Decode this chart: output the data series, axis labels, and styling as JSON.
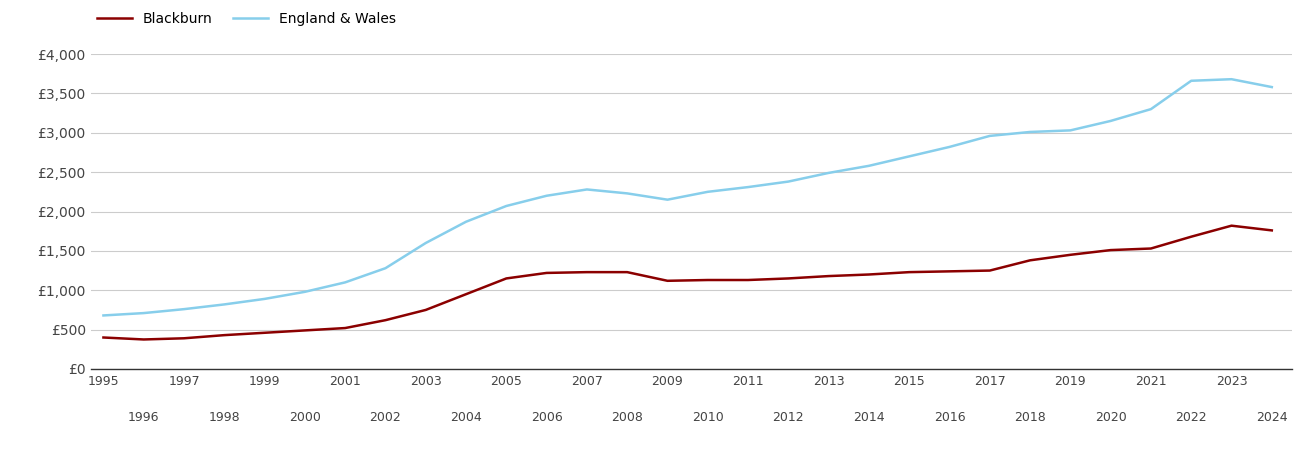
{
  "blackburn_years": [
    1995,
    1996,
    1997,
    1998,
    1999,
    2000,
    2001,
    2002,
    2003,
    2004,
    2005,
    2006,
    2007,
    2008,
    2009,
    2010,
    2011,
    2012,
    2013,
    2014,
    2015,
    2016,
    2017,
    2018,
    2019,
    2020,
    2021,
    2022,
    2023,
    2024
  ],
  "blackburn_values": [
    400,
    375,
    390,
    430,
    460,
    490,
    520,
    620,
    750,
    950,
    1150,
    1220,
    1230,
    1230,
    1120,
    1130,
    1130,
    1150,
    1180,
    1200,
    1230,
    1240,
    1250,
    1380,
    1450,
    1510,
    1530,
    1680,
    1820,
    1760
  ],
  "ew_years": [
    1995,
    1996,
    1997,
    1998,
    1999,
    2000,
    2001,
    2002,
    2003,
    2004,
    2005,
    2006,
    2007,
    2008,
    2009,
    2010,
    2011,
    2012,
    2013,
    2014,
    2015,
    2016,
    2017,
    2018,
    2019,
    2020,
    2021,
    2022,
    2023,
    2024
  ],
  "ew_values": [
    680,
    710,
    760,
    820,
    890,
    980,
    1100,
    1280,
    1600,
    1870,
    2070,
    2200,
    2280,
    2230,
    2150,
    2250,
    2310,
    2380,
    2490,
    2580,
    2700,
    2820,
    2960,
    3010,
    3030,
    3150,
    3300,
    3660,
    3680,
    3580
  ],
  "blackburn_color": "#8B0000",
  "ew_color": "#87CEEB",
  "ylim": [
    0,
    4000
  ],
  "yticks": [
    0,
    500,
    1000,
    1500,
    2000,
    2500,
    3000,
    3500,
    4000
  ],
  "ytick_labels": [
    "£0",
    "£500",
    "£1,000",
    "£1,500",
    "£2,000",
    "£2,500",
    "£3,000",
    "£3,500",
    "£4,000"
  ],
  "xlim_min": 1994.7,
  "xlim_max": 2024.5,
  "background_color": "#ffffff",
  "grid_color": "#cccccc",
  "legend_blackburn": "Blackburn",
  "legend_ew": "England & Wales",
  "line_width": 1.8,
  "odd_years": [
    1995,
    1997,
    1999,
    2001,
    2003,
    2005,
    2007,
    2009,
    2011,
    2013,
    2015,
    2017,
    2019,
    2021,
    2023
  ],
  "even_years": [
    1996,
    1998,
    2000,
    2002,
    2004,
    2006,
    2008,
    2010,
    2012,
    2014,
    2016,
    2018,
    2020,
    2022,
    2024
  ]
}
